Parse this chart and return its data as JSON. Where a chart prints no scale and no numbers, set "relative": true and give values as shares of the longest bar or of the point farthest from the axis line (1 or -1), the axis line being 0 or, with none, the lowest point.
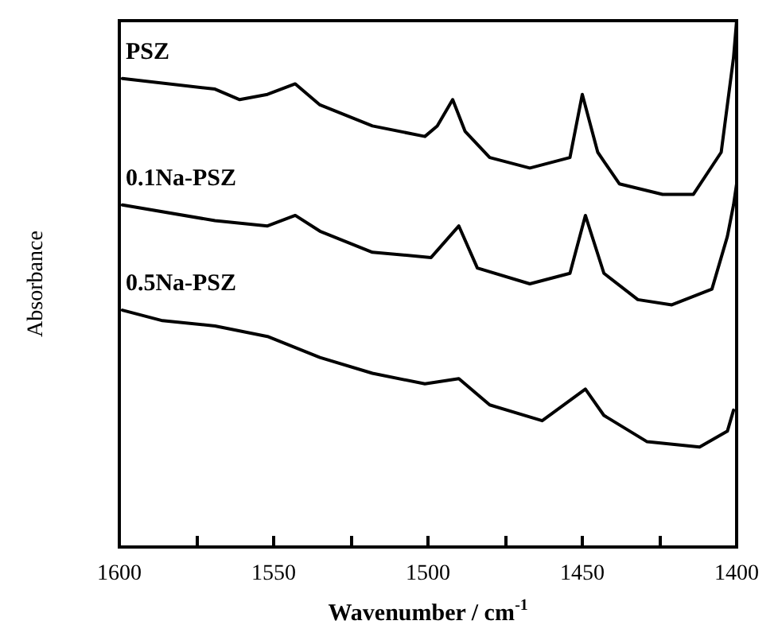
{
  "chart_data": {
    "type": "line",
    "xlabel": "Wavenumber / cm$^{-1}$",
    "ylabel": "Absorbance",
    "relative": true,
    "xlim": [
      1600,
      1400
    ],
    "xticks": [
      1600,
      {
        "value": 1575,
        "label": null
      },
      1550,
      {
        "value": 1525,
        "label": null
      },
      1500,
      {
        "value": 1475,
        "label": null
      },
      1450,
      {
        "value": 1425,
        "label": null
      },
      1400
    ],
    "grid": false,
    "legend": false,
    "marker": "none",
    "line_style": "solid",
    "series": [
      {
        "name": "PSZ",
        "color": "#000000",
        "x": [
          1599,
          1569,
          1561,
          1552,
          1543,
          1535,
          1518,
          1501,
          1497,
          1492,
          1488,
          1480,
          1467,
          1454,
          1450,
          1445,
          1438,
          1424,
          1414,
          1405,
          1401,
          1400
        ],
        "values": [
          0.89,
          0.87,
          0.85,
          0.86,
          0.88,
          0.84,
          0.8,
          0.78,
          0.8,
          0.85,
          0.79,
          0.74,
          0.72,
          0.74,
          0.86,
          0.75,
          0.69,
          0.67,
          0.67,
          0.75,
          0.93,
          1
        ]
      },
      {
        "name": "0.1Na-PSZ",
        "color": "#000000",
        "x": [
          1599,
          1569,
          1552,
          1543,
          1535,
          1518,
          1499,
          1490,
          1484,
          1467,
          1454,
          1449,
          1443,
          1432,
          1421,
          1408,
          1403,
          1401,
          1400
        ],
        "values": [
          0.65,
          0.62,
          0.61,
          0.63,
          0.6,
          0.56,
          0.55,
          0.61,
          0.53,
          0.5,
          0.52,
          0.63,
          0.52,
          0.47,
          0.46,
          0.49,
          0.59,
          0.65,
          0.69
        ]
      },
      {
        "name": "0.5Na-PSZ",
        "color": "#000000",
        "x": [
          1599,
          1586,
          1569,
          1552,
          1535,
          1518,
          1501,
          1490,
          1480,
          1463,
          1449,
          1443,
          1429,
          1412,
          1403,
          1401
        ],
        "values": [
          0.45,
          0.43,
          0.42,
          0.4,
          0.36,
          0.33,
          0.31,
          0.32,
          0.27,
          0.24,
          0.3,
          0.25,
          0.2,
          0.19,
          0.22,
          0.26
        ]
      }
    ]
  }
}
